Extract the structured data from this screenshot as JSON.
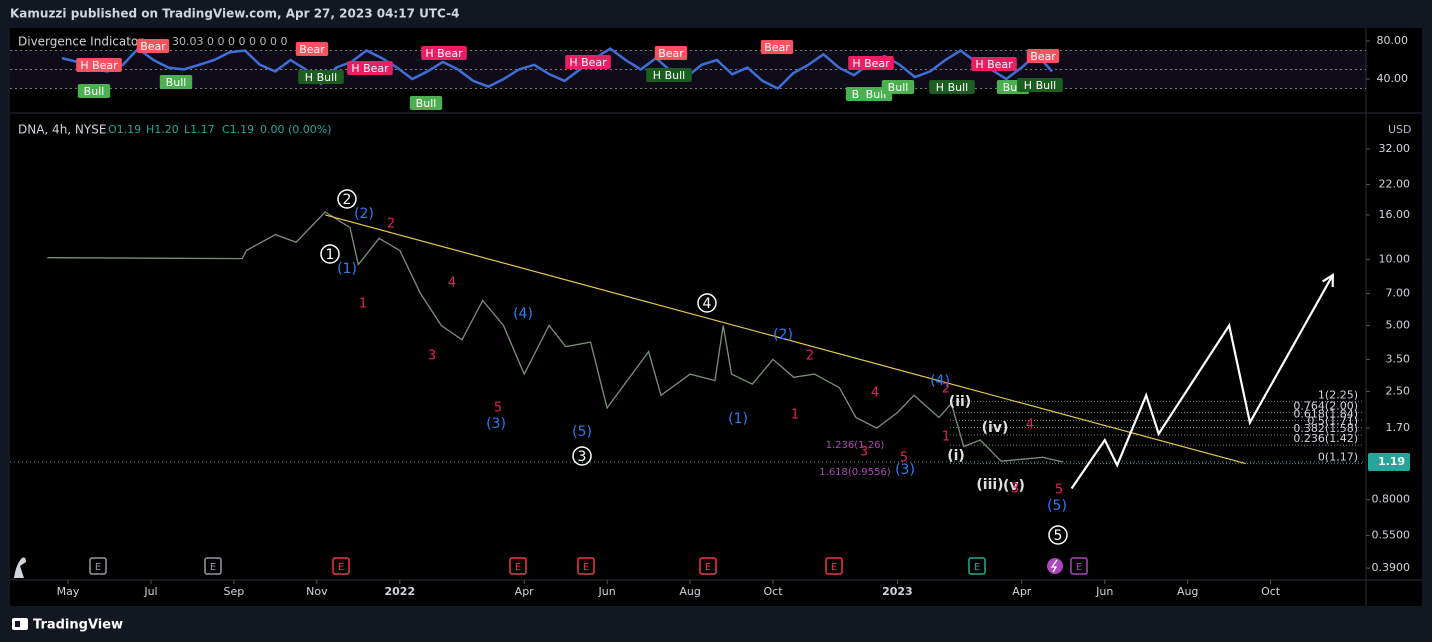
{
  "header": {
    "publisher": "Kamuzzi published on TradingView.com, Apr 27, 2023 04:17 UTC-4"
  },
  "indicator": {
    "title": "Divergence Indicator",
    "inputs": "30.03  0  0  0  0  0  0  0  0",
    "ylim": [
      5.3,
      91.6
    ],
    "yticks": [
      {
        "value": 80,
        "label": "80.00"
      },
      {
        "value": 40,
        "label": "40.00"
      }
    ],
    "levels": [
      70,
      50,
      30
    ],
    "color": "#3d6fd6",
    "values": [
      62,
      58,
      50,
      48,
      55,
      72,
      60,
      52,
      50,
      55,
      60,
      68,
      70,
      55,
      48,
      60,
      50,
      35,
      52,
      58,
      70,
      62,
      52,
      40,
      48,
      58,
      50,
      38,
      32,
      40,
      50,
      55,
      45,
      38,
      50,
      62,
      72,
      60,
      50,
      62,
      48,
      42,
      55,
      60,
      45,
      52,
      38,
      30,
      46,
      55,
      66,
      52,
      44,
      56,
      64,
      55,
      42,
      48,
      60,
      70,
      58,
      50,
      40,
      52,
      66,
      48
    ],
    "signals": [
      {
        "text": "H Bear",
        "kind": "bear"
      },
      {
        "text": "Bear",
        "kind": "bear"
      },
      {
        "text": "Bull",
        "kind": "bull"
      },
      {
        "text": "Bull",
        "kind": "bull"
      },
      {
        "text": "Bear",
        "kind": "bear"
      },
      {
        "text": "H Bull",
        "kind": "hbull"
      },
      {
        "text": "H Bear",
        "kind": "hbear"
      },
      {
        "text": "H Bear",
        "kind": "hbear"
      },
      {
        "text": "Bull",
        "kind": "bull"
      },
      {
        "text": "H Bear",
        "kind": "hbear"
      },
      {
        "text": "Bear",
        "kind": "bear"
      },
      {
        "text": "H Bull",
        "kind": "hbull"
      },
      {
        "text": "Bear",
        "kind": "bear"
      },
      {
        "text": "H Bear",
        "kind": "hbear"
      },
      {
        "text": "Bull",
        "kind": "bull"
      },
      {
        "text": "Bull",
        "kind": "bull"
      },
      {
        "text": "Bull",
        "kind": "bull"
      },
      {
        "text": "H Bull",
        "kind": "hbull"
      },
      {
        "text": "H Bear",
        "kind": "hbear"
      },
      {
        "text": "Bull",
        "kind": "bull"
      },
      {
        "text": "H Bull",
        "kind": "hbull"
      },
      {
        "text": "Bear",
        "kind": "bear"
      }
    ]
  },
  "chart_data": {
    "type": "line",
    "symbol": "DNA, 4h, NYSE",
    "ohlc": [
      "O1.19",
      "H1.20",
      "L1.17",
      "C1.19",
      "0.00 (0.00%)"
    ],
    "currency": "USD",
    "log_scale": true,
    "xlim": [
      -1.4,
      31.3
    ],
    "xticks": [
      {
        "value": 0,
        "label": "May"
      },
      {
        "value": 2,
        "label": "Jul"
      },
      {
        "value": 4,
        "label": "Sep"
      },
      {
        "value": 6,
        "label": "Nov"
      },
      {
        "value": 8,
        "label": "2022"
      },
      {
        "value": 11,
        "label": "Apr"
      },
      {
        "value": 13,
        "label": "Jun"
      },
      {
        "value": 15,
        "label": "Aug"
      },
      {
        "value": 17,
        "label": "Oct"
      },
      {
        "value": 20,
        "label": "2023"
      },
      {
        "value": 23,
        "label": "Apr"
      },
      {
        "value": 25,
        "label": "Jun"
      },
      {
        "value": 27,
        "label": "Aug"
      },
      {
        "value": 29,
        "label": "Oct"
      }
    ],
    "ylim": [
      0.344,
      43.4
    ],
    "yticks": [
      {
        "value": 32,
        "label": "32.00"
      },
      {
        "value": 22,
        "label": "22.00"
      },
      {
        "value": 16,
        "label": "16.00"
      },
      {
        "value": 10,
        "label": "10.00"
      },
      {
        "value": 7,
        "label": "7.00"
      },
      {
        "value": 5,
        "label": "5.00"
      },
      {
        "value": 3.5,
        "label": "3.50"
      },
      {
        "value": 2.5,
        "label": "2.50"
      },
      {
        "value": 1.7,
        "label": "1.70"
      },
      {
        "value": 0.8,
        "label": "0.8000"
      },
      {
        "value": 0.55,
        "label": "0.5500"
      },
      {
        "value": 0.39,
        "label": "0.3900"
      }
    ],
    "color": "#7c8f7a",
    "x": [
      -0.5,
      4.2,
      4.3,
      5,
      5.5,
      6.2,
      6.8,
      7,
      7.5,
      8,
      8.5,
      9,
      9.5,
      10,
      10.5,
      11,
      11.6,
      12,
      12.6,
      13,
      13.6,
      14,
      14.3,
      15,
      15.6,
      15.8,
      16,
      16.5,
      17,
      17.5,
      18,
      18.6,
      19,
      19.5,
      20,
      20.4,
      21,
      21.3,
      21.6,
      22,
      22.5,
      23.5,
      24
    ],
    "values": [
      10.2,
      10.1,
      11,
      13,
      12,
      16.5,
      14,
      9.5,
      12.5,
      11,
      7,
      5,
      4.3,
      6.5,
      5,
      3,
      5,
      4,
      4.2,
      2.1,
      3,
      3.8,
      2.4,
      3,
      2.8,
      5,
      3,
      2.7,
      3.5,
      2.9,
      3,
      2.6,
      1.9,
      1.7,
      2,
      2.4,
      1.9,
      2.2,
      1.4,
      1.5,
      1.2,
      1.25,
      1.19
    ],
    "last_price": {
      "value": 1.19,
      "label": "1.19"
    },
    "trendline": {
      "x": [
        6.2,
        28.4
      ],
      "values": [
        16,
        1.17
      ],
      "color": "#e6c84a"
    },
    "projection": {
      "x": [
        24.2,
        25,
        25.3,
        26,
        26.3,
        28,
        28.5,
        30.5
      ],
      "values": [
        0.9,
        1.5,
        1.15,
        2.4,
        1.6,
        5,
        1.8,
        8.5
      ],
      "color": "#ffffff"
    },
    "fib_levels": [
      {
        "price": 2.25,
        "label": "1(2.25)"
      },
      {
        "price": 2.0,
        "label": "0.764(2.00)"
      },
      {
        "price": 1.84,
        "label": "0.618(1.84)"
      },
      {
        "price": 1.71,
        "label": "0.5(1.71)"
      },
      {
        "price": 1.58,
        "label": "0.382(1.58)"
      },
      {
        "price": 1.42,
        "label": "0.236(1.42)"
      },
      {
        "price": 1.17,
        "label": "0(1.17)"
      }
    ],
    "fib_notes": [
      "1.236(1.26)",
      "1.618(0.9556)"
    ],
    "wave_labels": {
      "primary": [
        "1",
        "2",
        "3",
        "4",
        "5"
      ],
      "sub": [
        "(i)",
        "(ii)",
        "(iii)",
        "(iv)",
        "(v)"
      ],
      "intermediate": [
        "(2)",
        "(1)",
        "(4)",
        "(3)",
        "(5)",
        "(1)",
        "(2)",
        "(3)",
        "(4)",
        "(5)"
      ],
      "minor": [
        "2",
        "1",
        "4",
        "3",
        "5",
        "1",
        "2",
        "4",
        "3",
        "5",
        "1",
        "2",
        "4",
        "5",
        "3"
      ]
    },
    "events": [
      "E",
      "E",
      "E",
      "E",
      "E",
      "E",
      "E",
      "E",
      "E"
    ]
  },
  "footer": {
    "brand": "TradingView"
  }
}
